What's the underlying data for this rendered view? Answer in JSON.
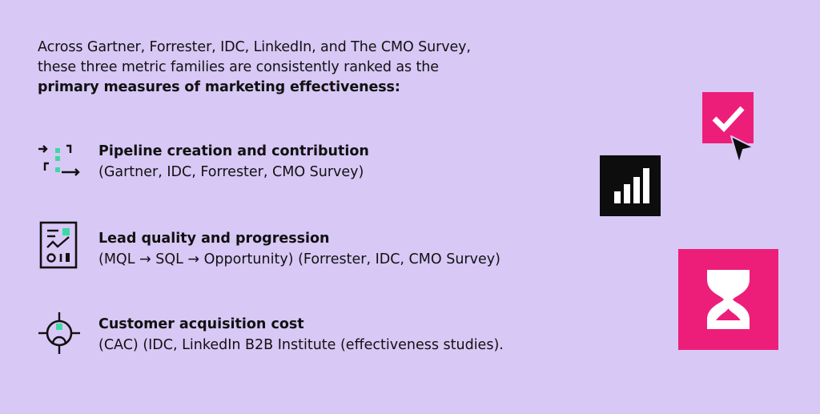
{
  "intro": {
    "line1": "Across Gartner, Forrester, IDC, LinkedIn, and The CMO Survey,",
    "line2": "these three metric families are consistently ranked as the",
    "line3_bold": "primary measures of marketing effectiveness:"
  },
  "metrics": [
    {
      "title": "Pipeline creation and contribution",
      "sources": "(Gartner, IDC, Forrester, CMO Survey)",
      "icon": "pipeline-flow-icon"
    },
    {
      "title": "Lead quality and progression",
      "sources": "(MQL → SQL → Opportunity) (Forrester, IDC, CMO Survey)",
      "icon": "report-chart-icon"
    },
    {
      "title": "Customer acquisition cost",
      "sources": "(CAC) (IDC, LinkedIn B2B Institute (effectiveness studies).",
      "icon": "target-crosshair-icon"
    }
  ],
  "decorations": {
    "check_card": "checkmark-icon",
    "cursor": "mouse-cursor-icon",
    "chart_card": "bar-chart-icon",
    "hourglass_card": "hourglass-icon"
  },
  "colors": {
    "background": "#d8c8f5",
    "accent_pink": "#ed1e79",
    "accent_green": "#3dd9a0",
    "text": "#111111",
    "dark_card": "#0d0d0d"
  }
}
